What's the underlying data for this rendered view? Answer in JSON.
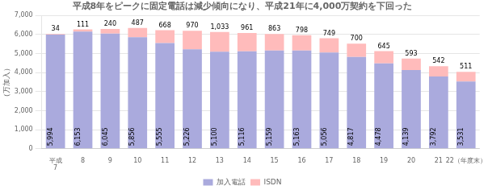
{
  "chart_data": {
    "type": "bar",
    "title": "平成8年をピークに固定電話は減少傾向になり、平成21年に4,000万契約を下回った",
    "ylabel": "（万加入）",
    "categories": [
      "平成\n7",
      "8",
      "9",
      "10",
      "11",
      "12",
      "13",
      "14",
      "15",
      "16",
      "17",
      "18",
      "19",
      "20",
      "21",
      "22（年度末）"
    ],
    "series": [
      {
        "name": "加入電話",
        "color": "#aaaadd",
        "values": [
          5994,
          6153,
          6045,
          5856,
          5555,
          5226,
          5100,
          5116,
          5159,
          5163,
          5056,
          4817,
          4478,
          4139,
          3792,
          3531
        ],
        "value_labels": [
          "5,994",
          "6,153",
          "6,045",
          "5,856",
          "5,555",
          "5,226",
          "5,100",
          "5,116",
          "5,159",
          "5,163",
          "5,056",
          "4,817",
          "4,478",
          "4,139",
          "3,792",
          "3,531"
        ]
      },
      {
        "name": "ISDN",
        "color": "#ffbbbb",
        "values": [
          34,
          111,
          240,
          487,
          668,
          970,
          1033,
          961,
          863,
          798,
          749,
          700,
          645,
          593,
          542,
          511
        ],
        "value_labels": [
          "34",
          "111",
          "240",
          "487",
          "668",
          "970",
          "1,033",
          "961",
          "863",
          "798",
          "749",
          "700",
          "645",
          "593",
          "542",
          "511"
        ]
      }
    ],
    "stacked": true,
    "data_labels": true,
    "ylim": [
      0,
      7000
    ],
    "yticks": [
      0,
      {
        "value": 1000,
        "label": "1,000"
      },
      {
        "value": 2000,
        "label": "2,000"
      },
      {
        "value": 3000,
        "label": "3,000"
      },
      {
        "value": 4000,
        "label": "4,000"
      },
      {
        "value": 5000,
        "label": "5,000"
      },
      {
        "value": 6000,
        "label": "6,000"
      },
      {
        "value": 7000,
        "label": "7,000"
      }
    ],
    "grid": "y",
    "legend": "bottom"
  }
}
